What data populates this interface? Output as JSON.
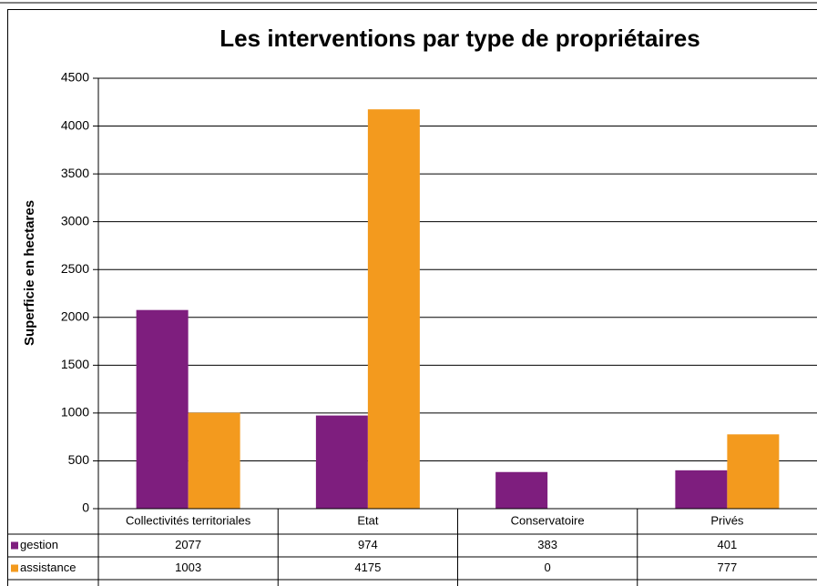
{
  "chart_data": {
    "type": "bar",
    "title": "Les interventions par type de propriétaires",
    "y_label": "Superficie en hectares",
    "categories": [
      "Collectivités territoriales",
      "Etat",
      "Conservatoire",
      "Privés"
    ],
    "series": [
      {
        "name": "gestion",
        "color": "#7e1e7e",
        "values": [
          2077,
          974,
          383,
          401
        ]
      },
      {
        "name": "assistance",
        "color": "#f39a1e",
        "values": [
          1003,
          4175,
          0,
          777
        ]
      }
    ],
    "ylim": [
      0,
      4500
    ],
    "yticks": [
      0,
      500,
      1000,
      1500,
      2000,
      2500,
      3000,
      3500,
      4000,
      4500
    ],
    "grid": true
  }
}
